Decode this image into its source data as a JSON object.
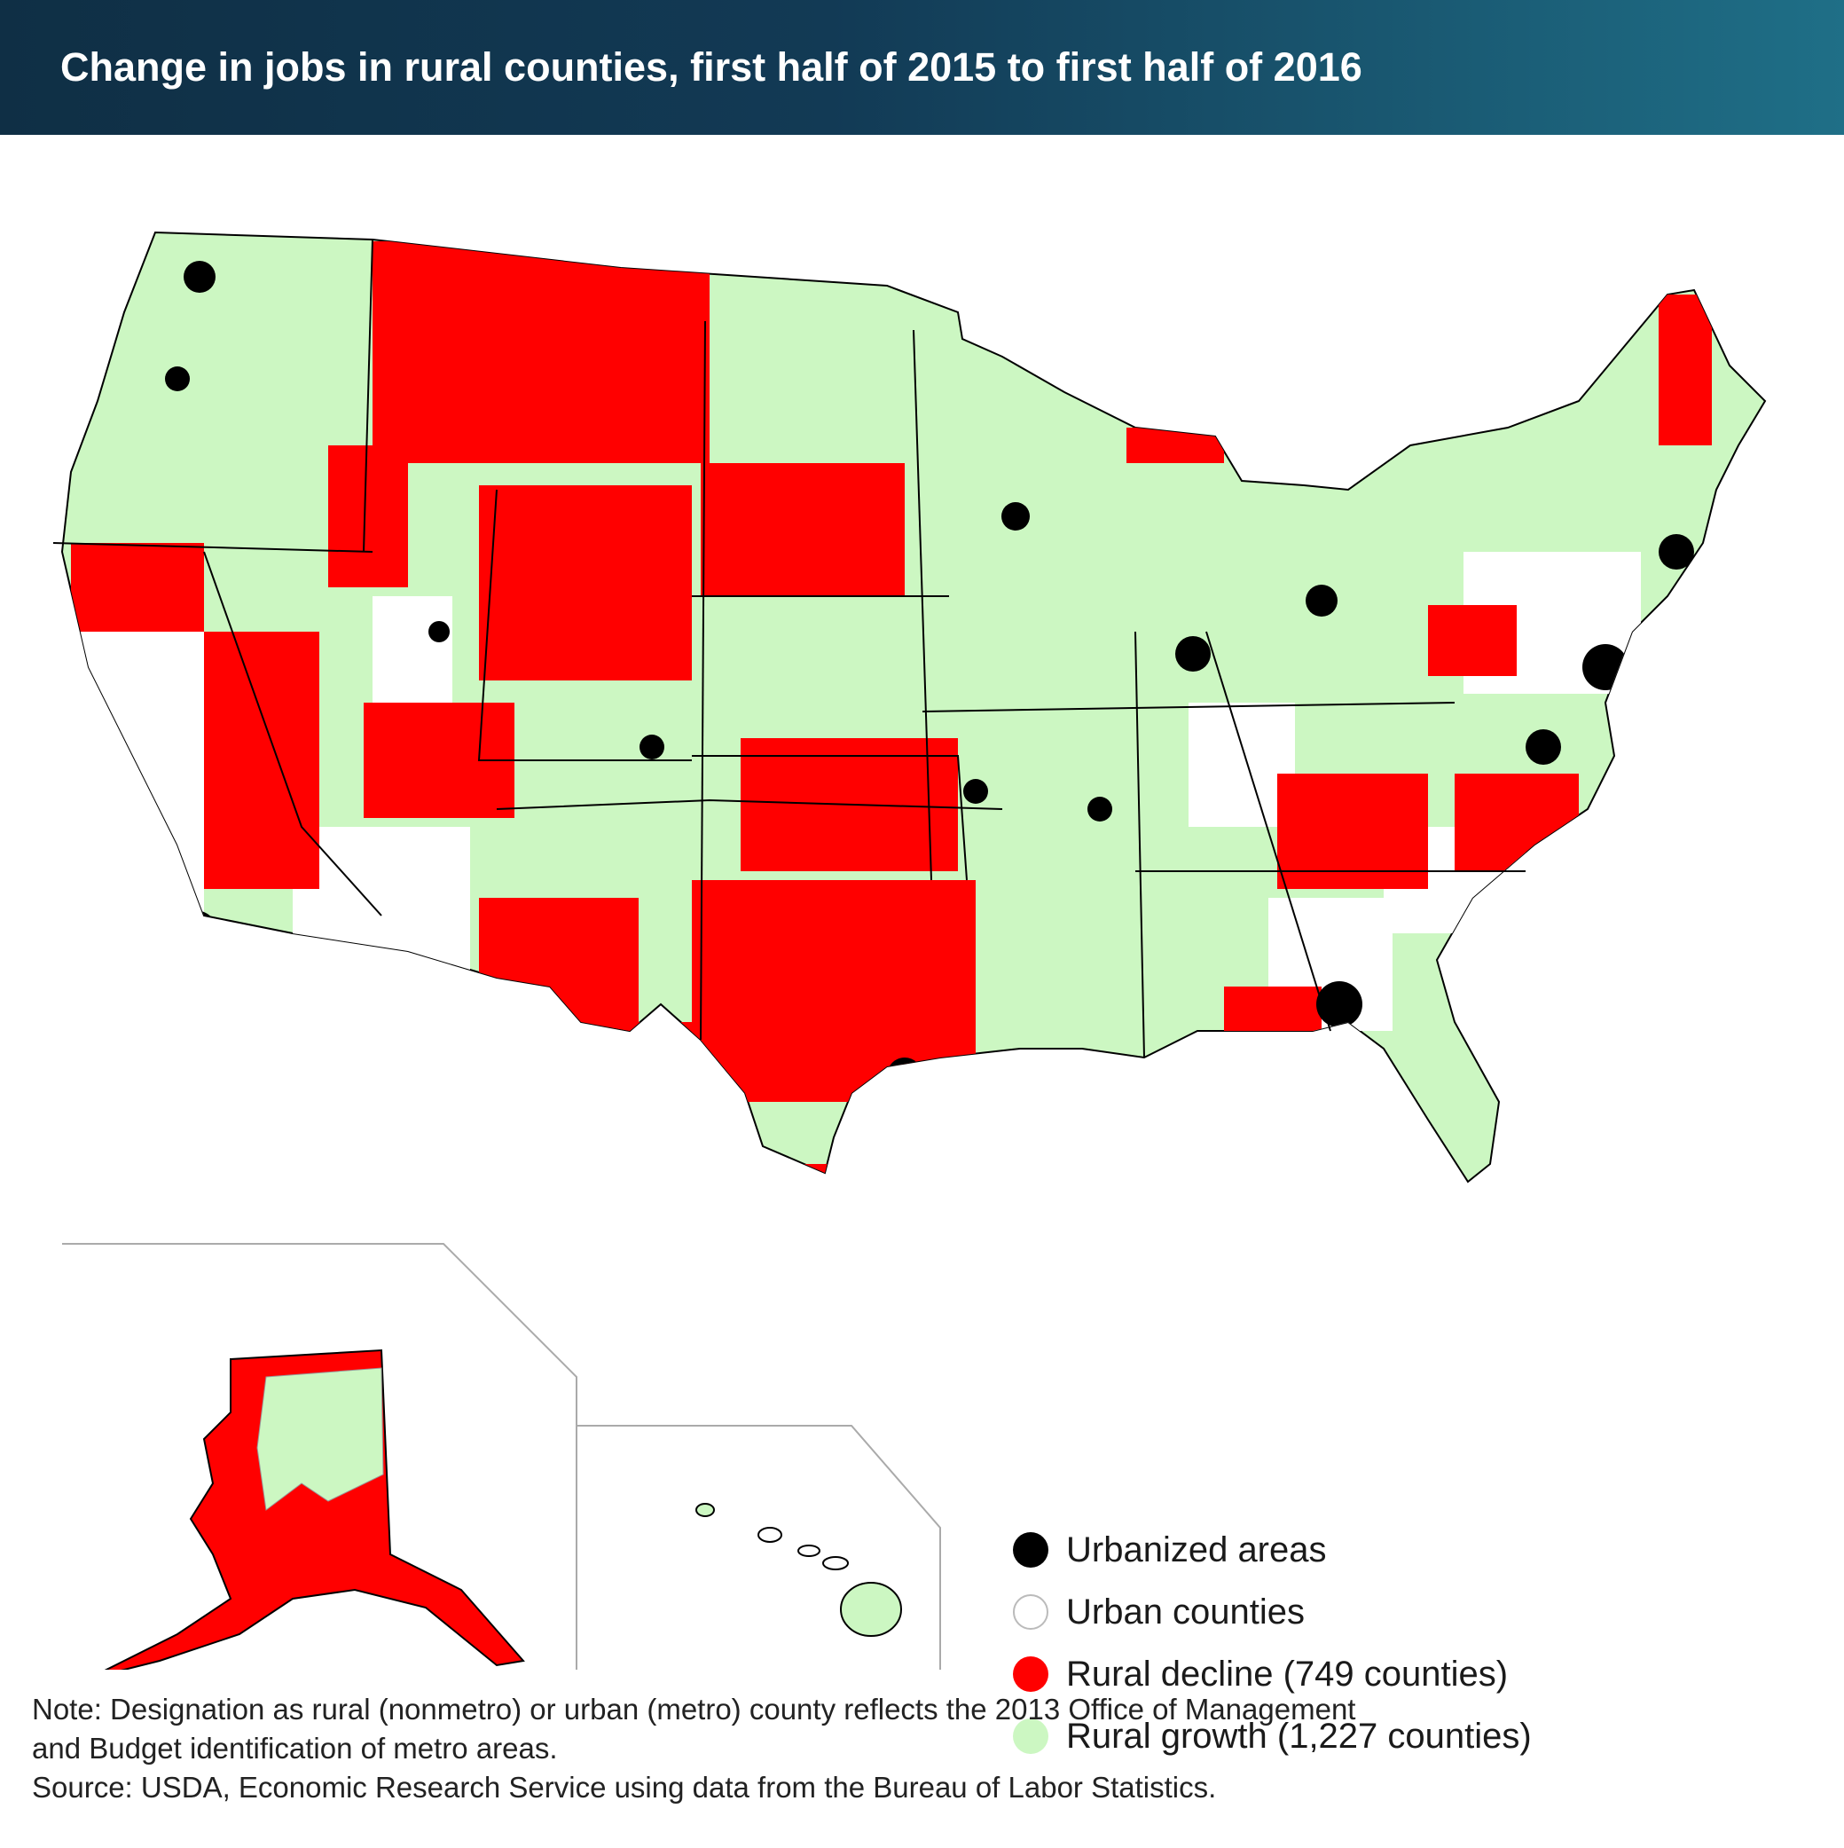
{
  "title": "Change in jobs in rural counties, first half of 2015 to first half of 2016",
  "legend": {
    "items": [
      {
        "label": "Urbanized areas",
        "color": "#000000"
      },
      {
        "label": "Urban counties",
        "color": "#ffffff"
      },
      {
        "label": "Rural decline (749 counties)",
        "color": "#ff0000"
      },
      {
        "label": "Rural growth (1,227 counties)",
        "color": "#ccf7c2"
      }
    ]
  },
  "notes": {
    "note_line1": "Note: Designation as rural (nonmetro) or urban (metro) county reflects the 2013 Office of Management",
    "note_line2": "and Budget identification of metro areas.",
    "source": "Source: USDA, Economic Research Service using data from the Bureau of Labor Statistics."
  },
  "colors": {
    "header_dark": "#0f2f45",
    "header_light": "#1f6f87",
    "decline": "#ff0000",
    "growth": "#ccf7c2",
    "urban": "#ffffff",
    "urbanized": "#000000",
    "border": "#999999"
  }
}
